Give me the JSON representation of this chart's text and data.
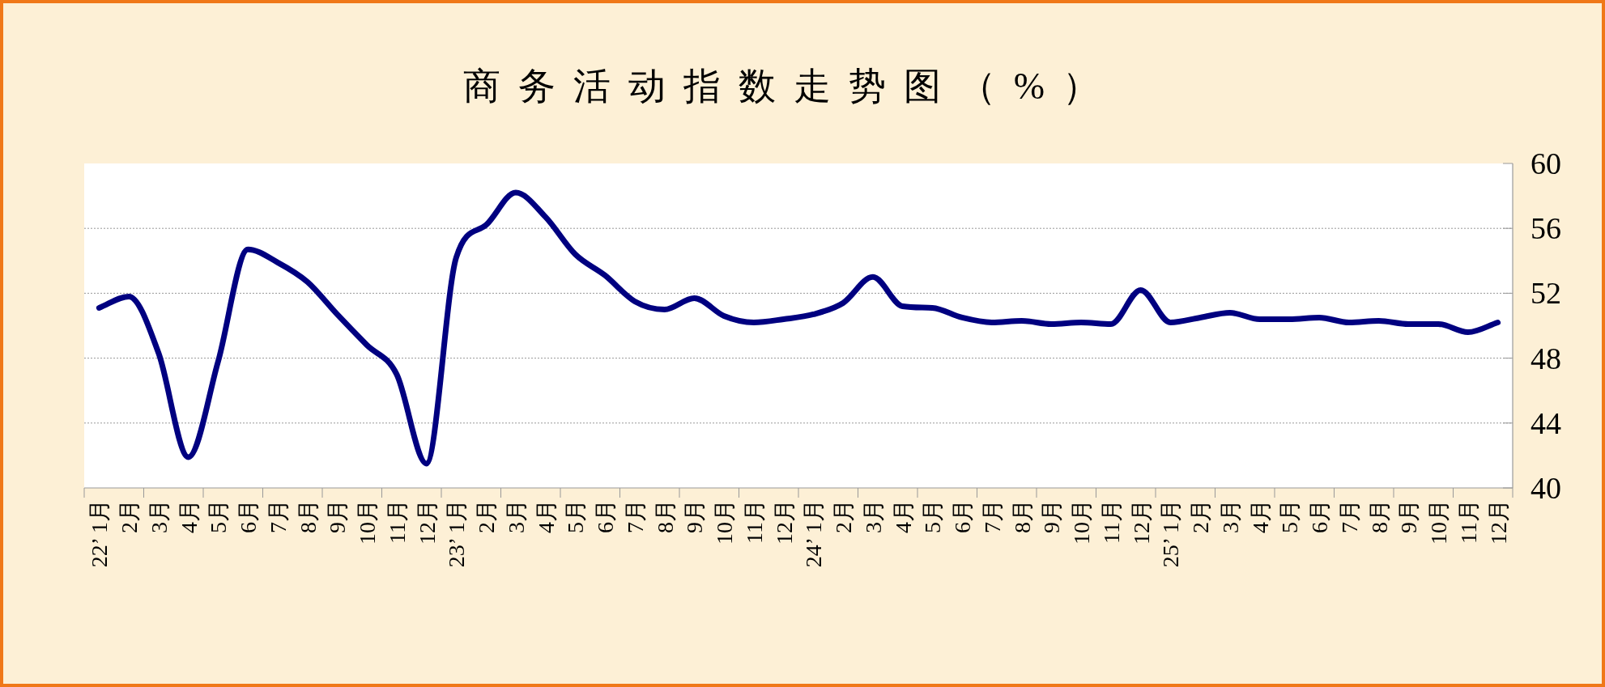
{
  "chart_data": {
    "type": "line",
    "title": "商务活动指数走势图（%）",
    "categories": [
      "22’ 1月",
      "2月",
      "3月",
      "4月",
      "5月",
      "6月",
      "7月",
      "8月",
      "9月",
      "10月",
      "11月",
      "12月",
      "23’ 1月",
      "2月",
      "3月",
      "4月",
      "5月",
      "6月",
      "7月",
      "8月",
      "9月",
      "10月",
      "11月",
      "12月",
      "24’ 1月",
      "2月",
      "3月",
      "4月",
      "5月",
      "6月",
      "7月",
      "8月",
      "9月",
      "10月",
      "11月",
      "12月",
      "25’ 1月",
      "2月",
      "3月",
      "4月",
      "5月",
      "6月",
      "7月",
      "8月",
      "9月",
      "10月",
      "11月",
      "12月"
    ],
    "series": [
      {
        "color": "#000080",
        "values": [
          51.1,
          51.8,
          48.3,
          41.9,
          47.8,
          54.7,
          53.9,
          52.7,
          50.7,
          48.8,
          47.0,
          41.5,
          54.2,
          56.2,
          58.2,
          56.7,
          54.4,
          53.1,
          51.5,
          51.0,
          51.7,
          50.6,
          50.2,
          50.4,
          50.7,
          51.4,
          53.0,
          51.2,
          51.1,
          50.5,
          50.2,
          50.3,
          50.1,
          50.2,
          50.1,
          52.2,
          50.2,
          50.5,
          50.8,
          50.4,
          50.4,
          50.5,
          50.2,
          50.3,
          50.1,
          50.1,
          49.6,
          50.2
        ]
      }
    ],
    "ylim": [
      40,
      60
    ],
    "yticks": [
      40,
      44,
      48,
      52,
      56,
      60
    ],
    "grid": "y"
  }
}
